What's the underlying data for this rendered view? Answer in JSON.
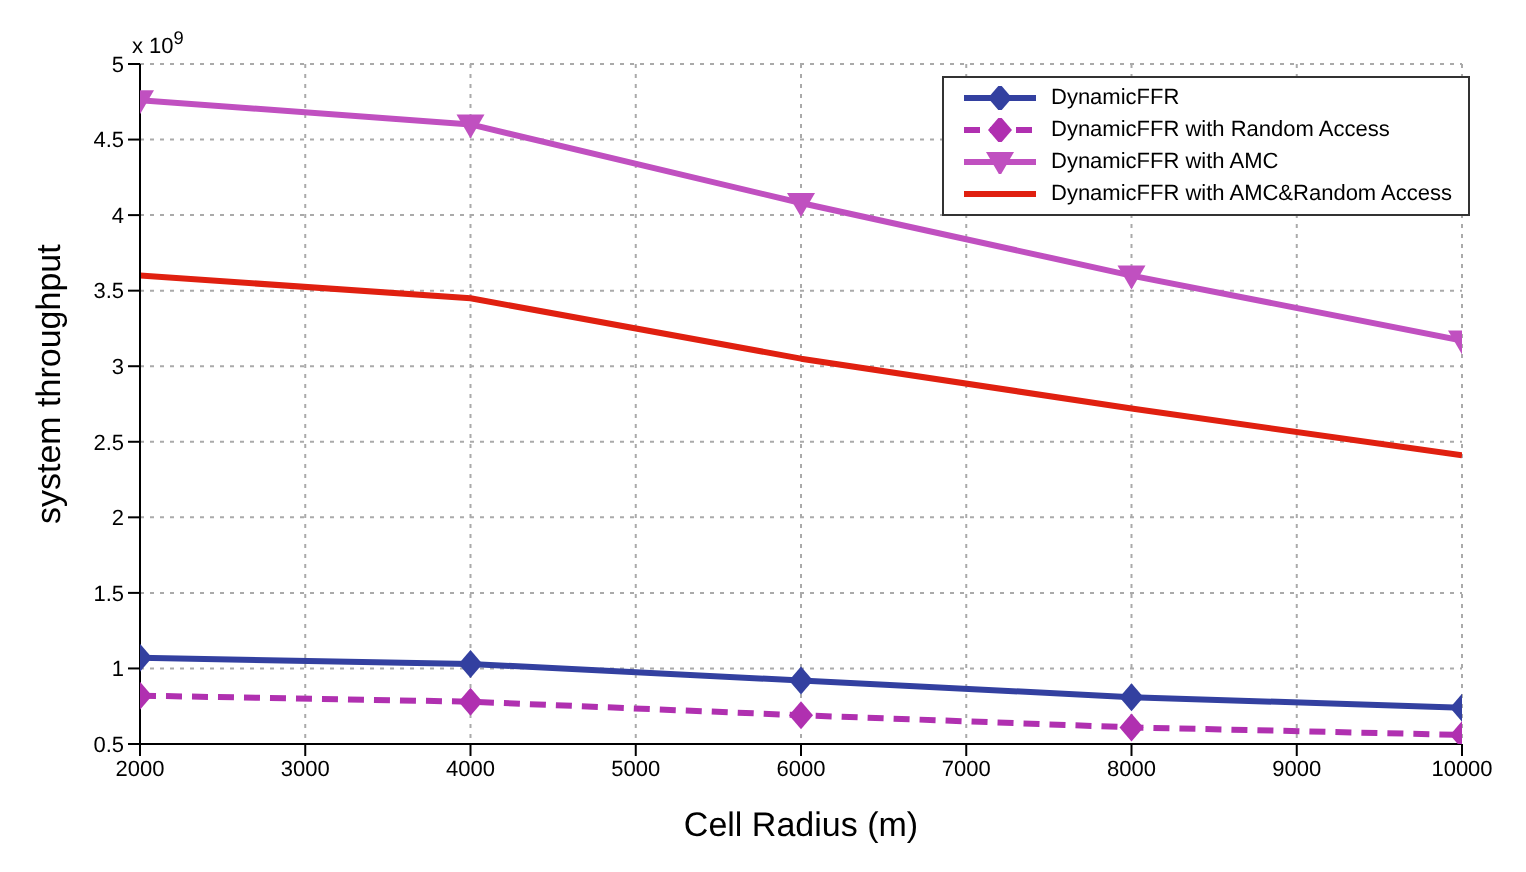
{
  "chart_data": {
    "type": "line",
    "xlabel": "Cell Radius (m)",
    "ylabel": "system throughput",
    "annotations": [
      "x 10$^{9}$"
    ],
    "x": [
      2000,
      4000,
      6000,
      8000,
      10000
    ],
    "series": [
      {
        "name": "DynamicFFR",
        "color": "#3340a0",
        "marker": "diamond",
        "line_style": "solid",
        "values": [
          1.07,
          1.03,
          0.92,
          0.81,
          0.74
        ]
      },
      {
        "name": "DynamicFFR with Random Access",
        "color": "#b030b0",
        "marker": "diamond",
        "line_style": "dashed",
        "values": [
          0.82,
          0.78,
          0.69,
          0.61,
          0.56
        ]
      },
      {
        "name": "DynamicFFR with AMC",
        "color": "#c050c0",
        "marker": "triangle",
        "line_style": "solid",
        "values": [
          4.76,
          4.6,
          4.08,
          3.6,
          3.17
        ]
      },
      {
        "name": "DynamicFFR with AMC&Random Access",
        "color": "#e02010",
        "marker": "none",
        "line_style": "solid",
        "values": [
          3.6,
          3.45,
          3.05,
          2.72,
          2.41
        ]
      }
    ],
    "xlim": [
      2000,
      10000
    ],
    "xticks": [
      2000,
      3000,
      4000,
      5000,
      6000,
      7000,
      8000,
      9000,
      10000
    ],
    "ylim": [
      0.5,
      5
    ],
    "yticks": [
      0.5,
      1,
      1.5,
      2,
      2.5,
      3,
      3.5,
      4,
      4.5,
      5
    ],
    "grid": true,
    "legend": "top right"
  }
}
